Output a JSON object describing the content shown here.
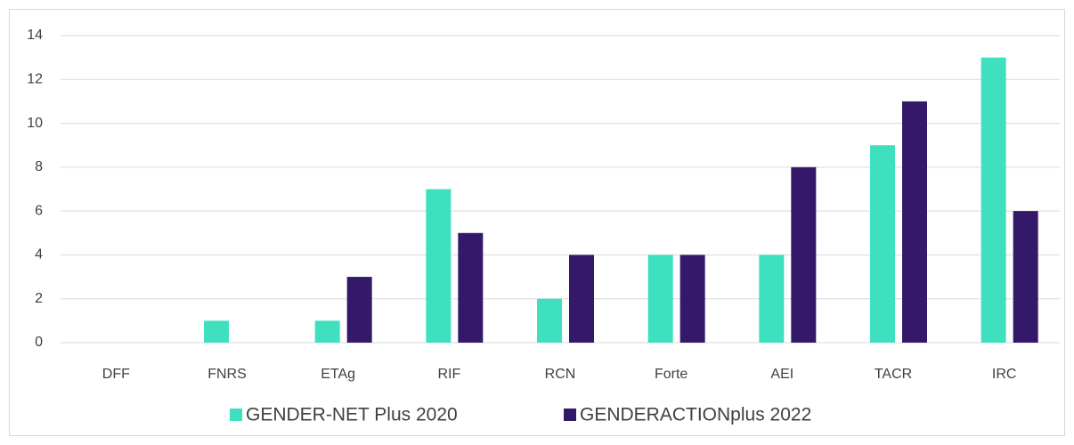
{
  "chart_data": {
    "type": "bar",
    "categories": [
      "DFF",
      "FNRS",
      "ETAg",
      "RIF",
      "RCN",
      "Forte",
      "AEI",
      "TACR",
      "IRC"
    ],
    "series": [
      {
        "name": "GENDER-NET Plus 2020",
        "color": "#3ee0bf",
        "values": [
          0,
          1,
          1,
          7,
          2,
          4,
          4,
          9,
          13
        ]
      },
      {
        "name": "GENDERACTIONplus 2022",
        "color": "#34196b",
        "values": [
          0,
          0,
          3,
          5,
          4,
          4,
          8,
          11,
          6
        ]
      }
    ],
    "ylim": [
      0,
      14
    ],
    "yticks": [
      0,
      2,
      4,
      6,
      8,
      10,
      12,
      14
    ],
    "grid": true,
    "legend": "bottom"
  }
}
